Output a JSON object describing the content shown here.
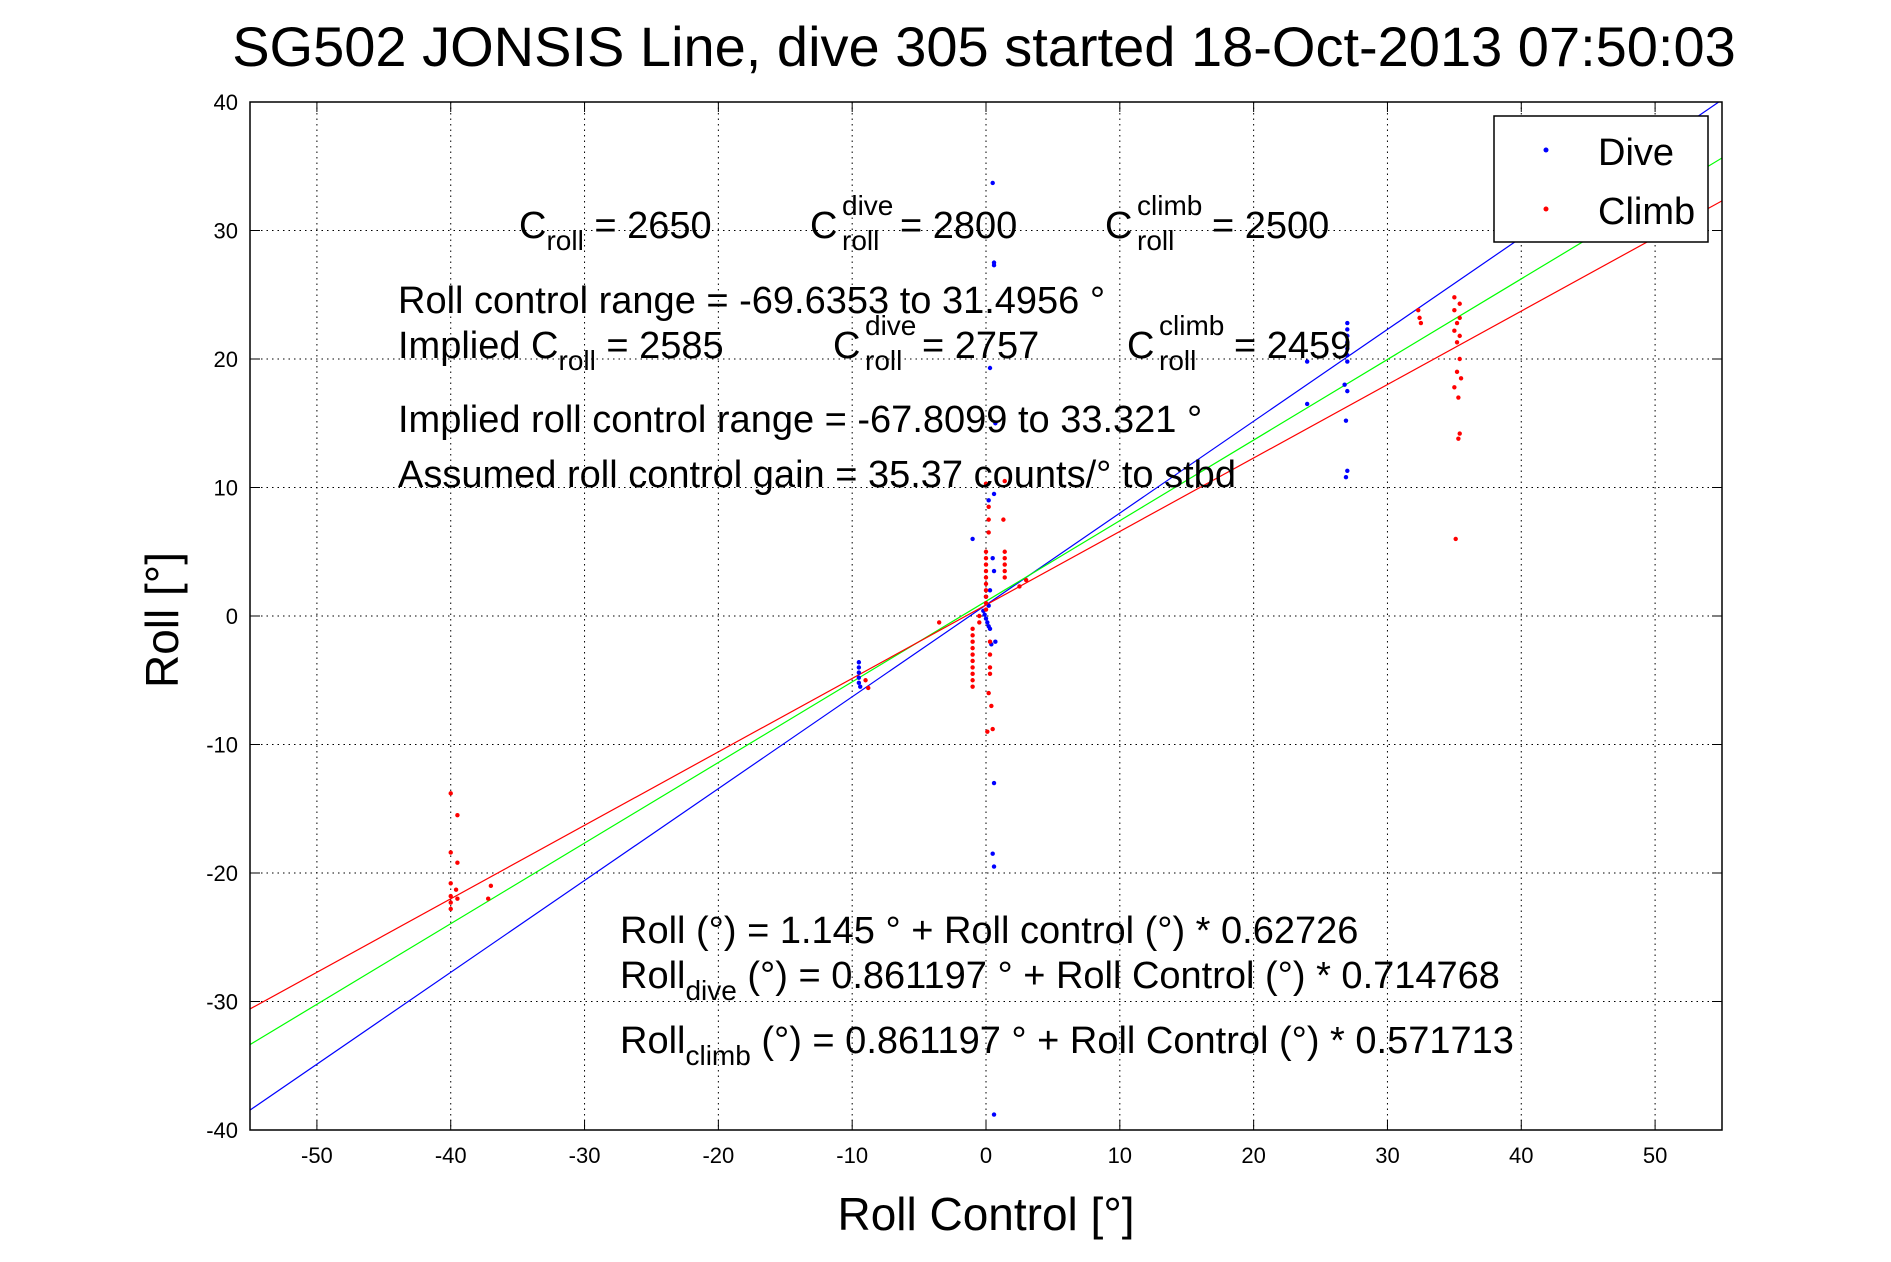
{
  "title": "SG502 JONSIS Line, dive 305 started 18-Oct-2013 07:50:03",
  "chart_data": {
    "type": "scatter",
    "title": "SG502 JONSIS Line, dive 305 started 18-Oct-2013 07:50:03",
    "xlabel": "Roll Control [°]",
    "ylabel": "Roll [°]",
    "xlim": [
      -55,
      55
    ],
    "ylim": [
      -40,
      40
    ],
    "xticks": [
      "-50",
      "-40",
      "-30",
      "-20",
      "-10",
      "0",
      "10",
      "20",
      "30",
      "40",
      "50"
    ],
    "yticks": [
      "40",
      "30",
      "20",
      "10",
      "0",
      "-10",
      "-20",
      "-30",
      "-40"
    ],
    "grid": true,
    "legend_position": "top-right",
    "series": [
      {
        "name": "Dive",
        "color": "#0000ff",
        "marker": "dot",
        "points": [
          [
            -9.5,
            -3.6
          ],
          [
            -9.5,
            -4.0
          ],
          [
            -9.5,
            -4.4
          ],
          [
            -9.5,
            -4.8
          ],
          [
            -9.5,
            -5.2
          ],
          [
            -9.4,
            -5.5
          ],
          [
            -0.2,
            0.4
          ],
          [
            -0.1,
            0.1
          ],
          [
            0.0,
            -0.2
          ],
          [
            0.1,
            -0.5
          ],
          [
            0.2,
            -0.8
          ],
          [
            0.3,
            -1.0
          ],
          [
            0.2,
            0.8
          ],
          [
            0.0,
            1.5
          ],
          [
            0.3,
            2.0
          ],
          [
            -1.0,
            6.0
          ],
          [
            0.2,
            9.0
          ],
          [
            0.6,
            9.5
          ],
          [
            0.5,
            4.5
          ],
          [
            0.6,
            3.5
          ],
          [
            0.4,
            -2.2
          ],
          [
            0.7,
            -2.0
          ],
          [
            0.5,
            33.7
          ],
          [
            0.6,
            27.5
          ],
          [
            0.6,
            27.3
          ],
          [
            0.3,
            19.3
          ],
          [
            0.7,
            15.0
          ],
          [
            0.6,
            -13.0
          ],
          [
            0.5,
            -18.5
          ],
          [
            0.6,
            -19.5
          ],
          [
            0.6,
            -38.8
          ],
          [
            27.0,
            22.8
          ],
          [
            27.0,
            22.3
          ],
          [
            27.0,
            21.8
          ],
          [
            27.0,
            21.3
          ],
          [
            27.0,
            20.8
          ],
          [
            27.0,
            20.3
          ],
          [
            27.0,
            19.8
          ],
          [
            26.8,
            18.0
          ],
          [
            27.0,
            17.5
          ],
          [
            26.9,
            15.2
          ],
          [
            27.0,
            11.3
          ],
          [
            26.9,
            10.8
          ],
          [
            24.0,
            19.8
          ],
          [
            24.0,
            16.5
          ]
        ]
      },
      {
        "name": "Climb",
        "color": "#ff0000",
        "marker": "dot",
        "points": [
          [
            -40.0,
            -13.8
          ],
          [
            -39.5,
            -15.5
          ],
          [
            -40.0,
            -18.4
          ],
          [
            -39.5,
            -19.2
          ],
          [
            -40.0,
            -20.8
          ],
          [
            -39.6,
            -21.3
          ],
          [
            -40.0,
            -21.8
          ],
          [
            -40.0,
            -22.3
          ],
          [
            -40.0,
            -22.8
          ],
          [
            -39.5,
            -22.0
          ],
          [
            -37.0,
            -21.0
          ],
          [
            -37.2,
            -22.0
          ],
          [
            -9.0,
            -5.0
          ],
          [
            -8.8,
            -5.6
          ],
          [
            -3.5,
            -0.5
          ],
          [
            -1.0,
            -5.5
          ],
          [
            -1.0,
            -5.0
          ],
          [
            -1.0,
            -4.5
          ],
          [
            -1.0,
            -4.0
          ],
          [
            -1.0,
            -3.5
          ],
          [
            -1.0,
            -3.0
          ],
          [
            -1.0,
            -2.5
          ],
          [
            -1.0,
            -2.0
          ],
          [
            -1.0,
            -1.5
          ],
          [
            -1.0,
            -1.0
          ],
          [
            -0.5,
            -0.5
          ],
          [
            -0.5,
            0.0
          ],
          [
            0.0,
            0.5
          ],
          [
            0.0,
            1.0
          ],
          [
            0.0,
            1.5
          ],
          [
            0.0,
            2.0
          ],
          [
            0.0,
            2.5
          ],
          [
            0.0,
            3.0
          ],
          [
            0.0,
            3.5
          ],
          [
            0.0,
            4.0
          ],
          [
            0.0,
            4.5
          ],
          [
            0.0,
            5.0
          ],
          [
            0.2,
            6.5
          ],
          [
            0.2,
            7.5
          ],
          [
            0.2,
            8.5
          ],
          [
            0.0,
            10.3
          ],
          [
            1.3,
            7.5
          ],
          [
            1.4,
            5.0
          ],
          [
            1.4,
            4.5
          ],
          [
            1.4,
            4.0
          ],
          [
            1.4,
            3.5
          ],
          [
            1.4,
            3.0
          ],
          [
            1.4,
            10.5
          ],
          [
            0.3,
            -2.0
          ],
          [
            0.3,
            -3.0
          ],
          [
            0.3,
            -4.0
          ],
          [
            0.3,
            -4.5
          ],
          [
            0.2,
            -6.0
          ],
          [
            0.4,
            -7.0
          ],
          [
            0.1,
            -9.0
          ],
          [
            0.5,
            -8.8
          ],
          [
            2.5,
            2.3
          ],
          [
            3.0,
            2.8
          ],
          [
            32.3,
            23.8
          ],
          [
            32.4,
            23.2
          ],
          [
            32.5,
            22.8
          ],
          [
            35.0,
            24.8
          ],
          [
            35.4,
            24.3
          ],
          [
            35.0,
            23.8
          ],
          [
            35.4,
            23.2
          ],
          [
            35.2,
            22.8
          ],
          [
            35.0,
            22.2
          ],
          [
            35.4,
            21.8
          ],
          [
            35.2,
            21.3
          ],
          [
            35.4,
            20.0
          ],
          [
            35.2,
            19.0
          ],
          [
            35.5,
            18.5
          ],
          [
            35.0,
            17.8
          ],
          [
            35.3,
            17.0
          ],
          [
            35.4,
            14.2
          ],
          [
            35.3,
            13.8
          ],
          [
            35.1,
            6.0
          ]
        ]
      }
    ],
    "fit_lines": [
      {
        "label": "Dive fit",
        "color": "#0000ff",
        "intercept": 0.861197,
        "slope": 0.714768
      },
      {
        "label": "Overall fit",
        "color": "#00ff00",
        "intercept": 1.145,
        "slope": 0.62726
      },
      {
        "label": "Climb fit",
        "color": "#ff0000",
        "intercept": 0.861197,
        "slope": 0.571713
      }
    ]
  },
  "annotations": {
    "c_sym": "C",
    "sub_roll": "roll",
    "sup_dive": "dive",
    "sup_climb": "climb",
    "croll_value": " = 2650",
    "croll_dive_value": " = 2800",
    "croll_climb_value": " = 2500",
    "range_line": "Roll control range = -69.6353 to 31.4956 °",
    "implied_prefix": "Implied C",
    "implied_croll_value": " = 2585",
    "implied_croll_dive_value": " = 2757",
    "implied_croll_climb_value": " = 2459",
    "implied_range_line": "Implied roll control range = -67.8099 to 33.321 °",
    "gain_line": "Assumed roll control gain = 35.37 counts/° to stbd",
    "eq1": "Roll (°) = 1.145 ° + Roll control (°) * 0.62726",
    "eq2_start": "Roll",
    "eq2_sub": "dive",
    "eq2_rest": " (°) = 0.861197 ° + Roll Control (°) * 0.714768",
    "eq3_start": "Roll",
    "eq3_sub": "climb",
    "eq3_rest": " (°) = 0.861197 ° + Roll Control (°) * 0.571713"
  }
}
